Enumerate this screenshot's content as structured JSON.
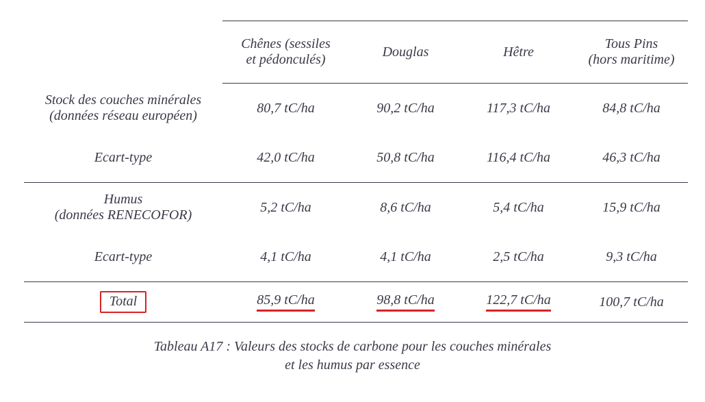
{
  "table": {
    "columns": [
      "Chênes (sessiles et pédonculés)",
      "Douglas",
      "Hêtre",
      "Tous Pins (hors maritime)"
    ],
    "rows": [
      {
        "label": "Stock des couches minérales (données réseau européen)",
        "cells": [
          "80,7 tC/ha",
          "90,2 tC/ha",
          "117,3 tC/ha",
          "84,8 tC/ha"
        ]
      },
      {
        "label": "Ecart-type",
        "cells": [
          "42,0 tC/ha",
          "50,8 tC/ha",
          "116,4 tC/ha",
          "46,3 tC/ha"
        ]
      },
      {
        "label": "Humus (données RENECOFOR)",
        "cells": [
          "5,2 tC/ha",
          "8,6 tC/ha",
          "5,4 tC/ha",
          "15,9 tC/ha"
        ]
      },
      {
        "label": "Ecart-type",
        "cells": [
          "4,1 tC/ha",
          "4,1 tC/ha",
          "2,5 tC/ha",
          "9,3 tC/ha"
        ]
      }
    ],
    "total": {
      "label": "Total",
      "cells": [
        "85,9 tC/ha",
        "98,8 tC/ha",
        "122,7 tC/ha",
        "100,7 tC/ha"
      ]
    },
    "annotation": {
      "box_color": "#d62324",
      "underline_color": "#d62324",
      "boxed_label": true,
      "underlined_cols": [
        0,
        1,
        2
      ]
    },
    "colors": {
      "text": "#3a3a48",
      "rule": "#3a3a48",
      "background": "#ffffff"
    },
    "font": {
      "family": "Garamond serif",
      "style": "italic",
      "size_pt": 15
    }
  },
  "caption_line1": "Tableau A17 : Valeurs des stocks de carbone pour les couches minérales",
  "caption_line2": "et les humus par essence"
}
